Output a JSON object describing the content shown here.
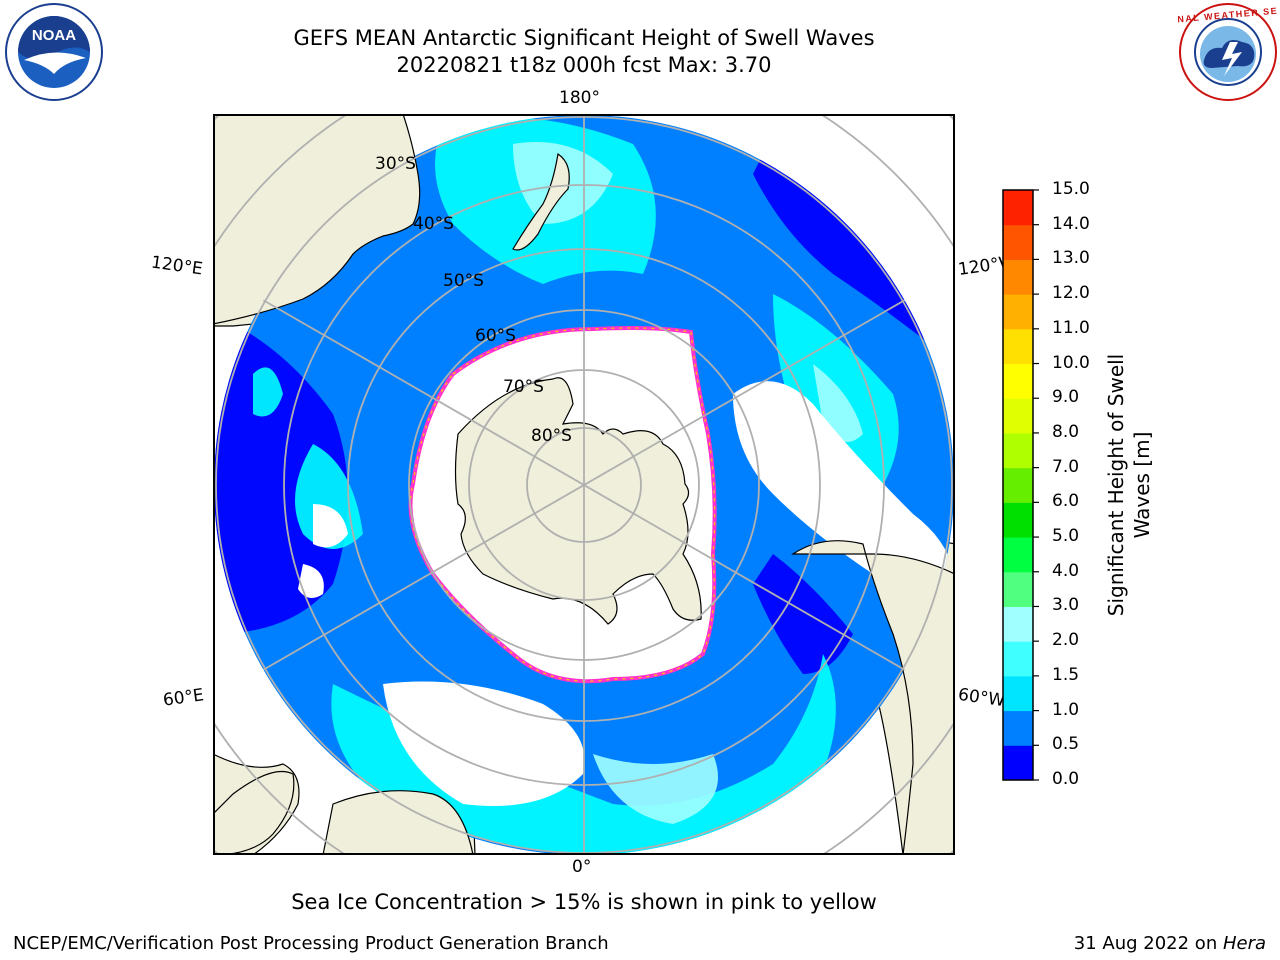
{
  "title": {
    "line1": "GEFS MEAN Antarctic Significant Height of Swell Waves",
    "line2": "20220821 t18z 000h fcst   Max: 3.70"
  },
  "logos": {
    "left": "noaa-logo",
    "right": "national-weather-service-logo",
    "left_text": "NOAA",
    "right_text": "NATIONAL WEATHER SERVICE"
  },
  "map": {
    "projection": "south-polar-stereographic",
    "lon_labels": {
      "top": "180°",
      "bottom": "0°",
      "upper_left": "120°E",
      "upper_right": "120°W",
      "lower_left": "60°E",
      "lower_right": "60°W"
    },
    "lat_labels": [
      "30°S",
      "40°S",
      "50°S",
      "60°S",
      "70°S",
      "80°S"
    ],
    "colors": {
      "land": "#efefdb",
      "ocean_low": "#0000ff",
      "ocean_mid": "#0080ff",
      "ocean_swell": "#00ffff",
      "ocean_high": "#66ffff",
      "ice_edge": "#ff33cc",
      "grid": "#b0b0b0"
    }
  },
  "colorbar": {
    "label_line1": "Significant Height of Swell",
    "label_line2": "Waves [m]",
    "ticks": [
      "0.0",
      "0.5",
      "1.0",
      "1.5",
      "2.0",
      "3.0",
      "4.0",
      "5.0",
      "6.0",
      "7.0",
      "8.0",
      "9.0",
      "10.0",
      "11.0",
      "12.0",
      "13.0",
      "14.0",
      "15.0"
    ],
    "colors": [
      "#0000ff",
      "#0080ff",
      "#00e5ff",
      "#40ffff",
      "#a0ffff",
      "#50ff80",
      "#00ff40",
      "#00e000",
      "#66ee00",
      "#b0ff00",
      "#e0ff00",
      "#ffff00",
      "#ffe000",
      "#ffb000",
      "#ff8800",
      "#ff5500",
      "#ff2200",
      "#ff0000"
    ]
  },
  "ice_note": "Sea Ice Concentration > 15% is shown in pink to yellow",
  "footer": {
    "left": "NCEP/EMC/Verification Post Processing Product Generation Branch",
    "date": "31 Aug 2022 on ",
    "machine": "Hera"
  }
}
